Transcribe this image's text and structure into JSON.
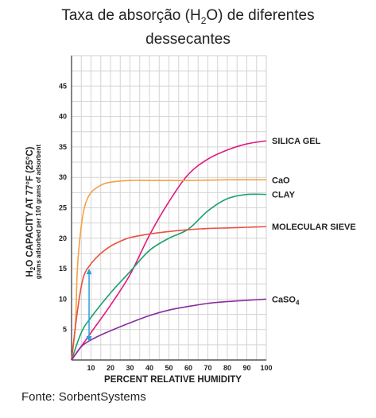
{
  "title_line1_prefix": "Taxa de absorção (H",
  "title_line1_sub": "2",
  "title_line1_suffix": "O) de diferentes",
  "title_line2": "dessecantes",
  "source": "Fonte: SorbentSystems",
  "chart_data": {
    "type": "line",
    "title": "Taxa de absorção (H2O) de diferentes dessecantes",
    "xlabel": "PERCENT RELATIVE HUMIDITY",
    "ylabel_main_prefix": "H",
    "ylabel_main_sub": "2",
    "ylabel_main_suffix": "O CAPACITY AT 77°F (25°C)",
    "ylabel_sub": "grams adsorbed per 100 grams of adsorbent",
    "xlim": [
      0,
      100
    ],
    "ylim": [
      0,
      50
    ],
    "xticks": [
      10,
      20,
      30,
      40,
      50,
      60,
      70,
      80,
      90,
      100
    ],
    "yticks": [
      5,
      10,
      15,
      20,
      25,
      30,
      35,
      40,
      45
    ],
    "grid": true,
    "series": [
      {
        "name": "SILICA GEL",
        "color": "#e0197d",
        "x": [
          0,
          10,
          20,
          30,
          40,
          50,
          60,
          70,
          80,
          90,
          100
        ],
        "y": [
          0,
          4.5,
          9,
          14,
          20.5,
          26,
          30.5,
          33,
          34.5,
          35.5,
          36
        ]
      },
      {
        "name": "CaO",
        "color": "#f5a040",
        "x": [
          0,
          2,
          3,
          5,
          7,
          10,
          15,
          20,
          30,
          40,
          60,
          80,
          100
        ],
        "y": [
          0,
          6,
          15,
          22,
          25.5,
          27.5,
          28.7,
          29.2,
          29.5,
          29.5,
          29.5,
          29.6,
          29.6
        ]
      },
      {
        "name": "CLAY",
        "color": "#1aa06a",
        "x": [
          0,
          5,
          10,
          20,
          30,
          40,
          50,
          60,
          70,
          80,
          90,
          100
        ],
        "y": [
          0,
          4.5,
          7,
          11,
          14.5,
          18,
          20,
          21.5,
          24.5,
          26.5,
          27.2,
          27.2
        ]
      },
      {
        "name": "MOLECULAR SIEVE",
        "color": "#e8503e",
        "x": [
          0,
          3,
          6,
          10,
          15,
          20,
          25,
          30,
          40,
          50,
          60,
          70,
          80,
          90,
          100
        ],
        "y": [
          0,
          8,
          13.5,
          15.8,
          17.5,
          18.7,
          19.5,
          20.1,
          20.7,
          21.1,
          21.4,
          21.6,
          21.7,
          21.8,
          21.9
        ]
      },
      {
        "name": "CaSO4",
        "label_main": "CaSO",
        "label_sub": "4",
        "color": "#8a2ba0",
        "x": [
          0,
          5,
          10,
          15,
          20,
          30,
          40,
          50,
          60,
          70,
          80,
          90,
          100
        ],
        "y": [
          0,
          2.2,
          3.3,
          4.1,
          4.8,
          6.1,
          7.3,
          8.2,
          8.8,
          9.3,
          9.6,
          9.8,
          10
        ]
      }
    ],
    "annotation": {
      "type": "double-arrow",
      "color": "#2ba0d8",
      "x": 9,
      "y_from": 3,
      "y_to": 15
    }
  }
}
